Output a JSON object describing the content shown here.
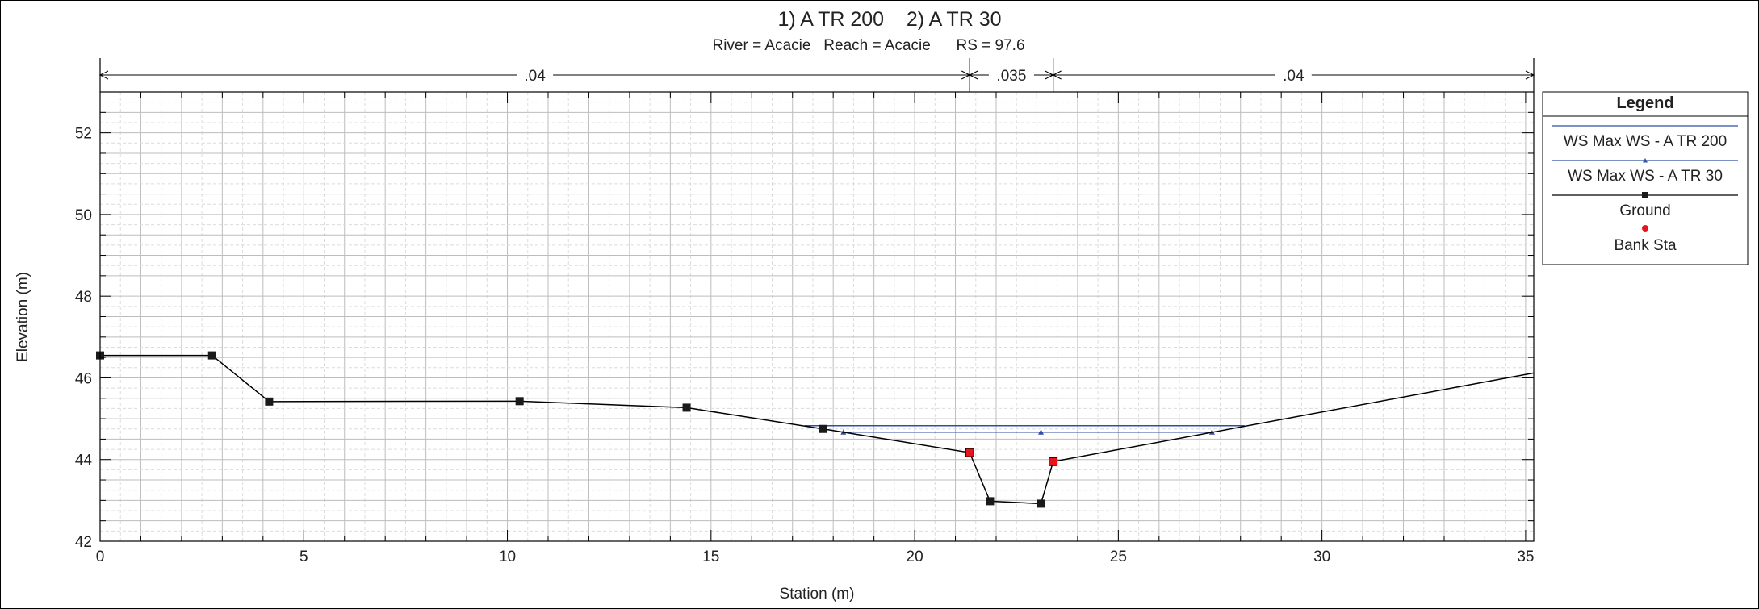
{
  "chart_data": {
    "type": "line",
    "title": "1) A TR 200    2) A TR 30",
    "subtitle": "River = Acacie   Reach = Acacie      RS = 97.6",
    "xlabel": "Station (m)",
    "ylabel": "Elevation (m)",
    "xlim": [
      0,
      35.2
    ],
    "ylim": [
      42,
      53
    ],
    "x_ticks": [
      0,
      5,
      10,
      15,
      20,
      25,
      30,
      35
    ],
    "y_ticks": [
      42,
      44,
      46,
      48,
      50,
      52
    ],
    "grid": true,
    "legend_position": "right",
    "legend_title": "Legend",
    "mannings": {
      "breaks": [
        0,
        21.35,
        23.4,
        35.2
      ],
      "values": [
        ".04",
        ".035",
        ".04"
      ]
    },
    "series": [
      {
        "name": "WS Max WS - A TR 200",
        "color": "#2f4fa2",
        "marker": "none",
        "x": [
          17.3,
          28.1
        ],
        "y": [
          44.83,
          44.83
        ]
      },
      {
        "name": "WS Max WS - A TR 30",
        "color": "#2f4fa2",
        "marker": "triangle",
        "x": [
          18.25,
          23.1,
          27.3
        ],
        "y": [
          44.67,
          44.67,
          44.67
        ]
      },
      {
        "name": "Ground",
        "color": "#000000",
        "marker": "square",
        "x": [
          0,
          2.75,
          4.15,
          10.3,
          14.4,
          17.75,
          21.35,
          21.85,
          23.1,
          23.4,
          35.2
        ],
        "y": [
          46.55,
          46.55,
          45.42,
          45.43,
          45.27,
          44.75,
          44.17,
          42.98,
          42.92,
          43.95,
          46.12
        ],
        "marker_x": [
          0,
          2.75,
          4.15,
          10.3,
          14.4,
          17.75,
          21.85,
          23.1
        ]
      },
      {
        "name": "Bank Sta",
        "color": "#e8141c",
        "marker": "square-red",
        "x": [
          21.35,
          23.4
        ],
        "y": [
          44.17,
          43.95
        ]
      }
    ]
  }
}
